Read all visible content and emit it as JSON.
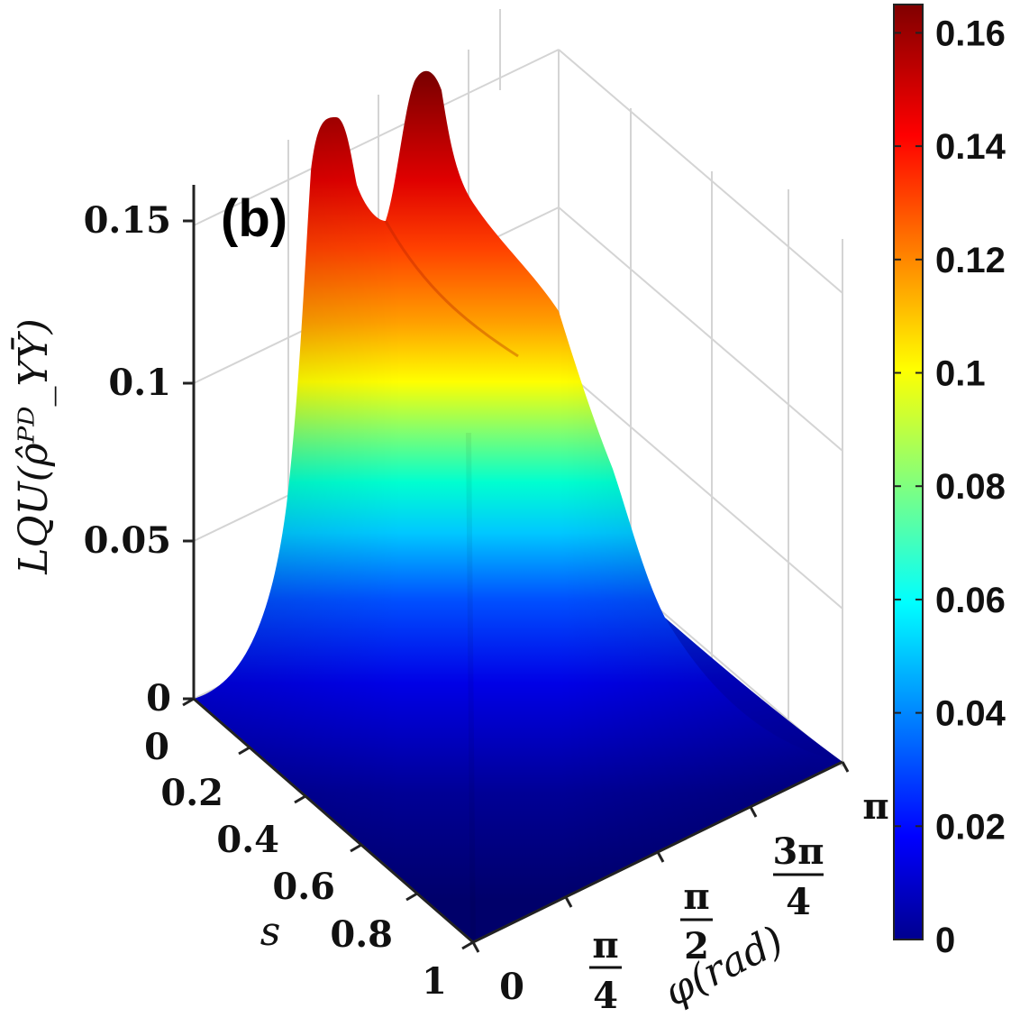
{
  "chart_data": {
    "type": "surface3d",
    "panel_label": "(b)",
    "zlabel": "LQU(ρ̂ᴾᴰ_ΥῩ)",
    "xlabel": "φ(rad)",
    "ylabel": "s",
    "z_ticks": [
      "0",
      "0.05",
      "0.1",
      "0.15"
    ],
    "s_ticks": [
      "0",
      "0.2",
      "0.4",
      "0.6",
      "0.8",
      "1"
    ],
    "phi_ticks": [
      {
        "num": "0",
        "den": ""
      },
      {
        "num": "π",
        "den": "4"
      },
      {
        "num": "π",
        "den": "2"
      },
      {
        "num": "3π",
        "den": "4"
      },
      {
        "num": "π",
        "den": ""
      }
    ],
    "zlim": [
      0,
      0.165
    ],
    "colormap": "jet",
    "colorbar": {
      "ticks": [
        "0",
        "0.02",
        "0.04",
        "0.06",
        "0.08",
        "0.1",
        "0.12",
        "0.14",
        "0.16"
      ],
      "range": [
        0,
        0.165
      ]
    },
    "surface_profile": {
      "ridge_s0": [
        {
          "phi": 0.0,
          "lqu": 0.0
        },
        {
          "phi": 0.2,
          "lqu": 0.025
        },
        {
          "phi": 0.4,
          "lqu": 0.09
        },
        {
          "phi": 0.6,
          "lqu": 0.155
        },
        {
          "phi": 0.785,
          "lqu": 0.13
        },
        {
          "phi": 1.1,
          "lqu": 0.108
        },
        {
          "phi": 1.571,
          "lqu": 0.127
        },
        {
          "phi": 1.9,
          "lqu": 0.16
        },
        {
          "phi": 2.2,
          "lqu": 0.13
        },
        {
          "phi": 2.6,
          "lqu": 0.045
        },
        {
          "phi": 3.142,
          "lqu": 0.0
        }
      ],
      "s_decay": "LQU decreases monotonically from s = 0 to about 0 at s = 1"
    },
    "grid": true
  }
}
